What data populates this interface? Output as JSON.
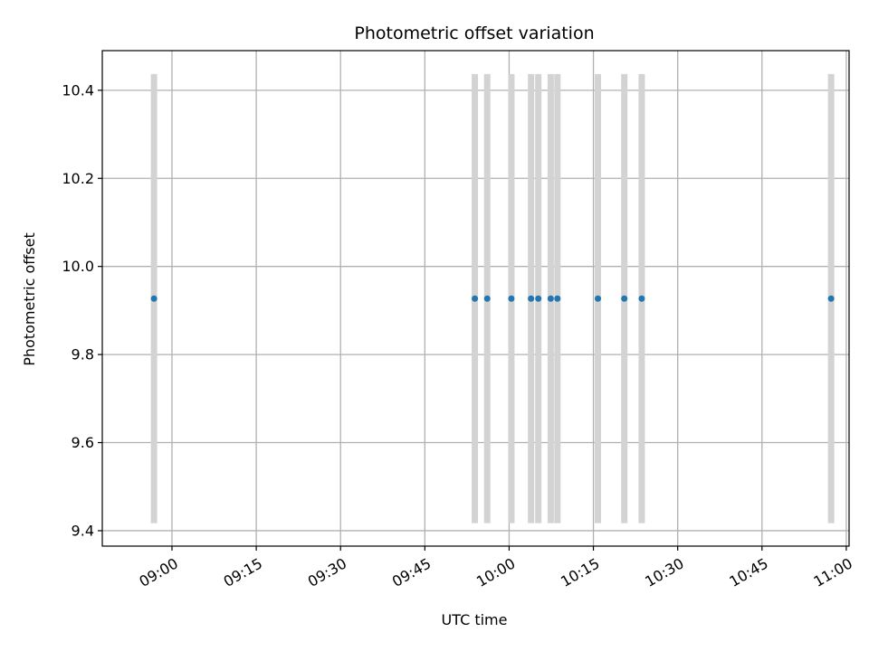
{
  "chart_data": {
    "type": "scatter",
    "title": "Photometric offset variation",
    "xlabel": "UTC time",
    "ylabel": "Photometric offset",
    "x_ticks": [
      "09:00",
      "09:15",
      "09:30",
      "09:45",
      "10:00",
      "10:15",
      "10:30",
      "10:45",
      "11:00"
    ],
    "y_ticks": [
      "9.4",
      "9.6",
      "9.8",
      "10.0",
      "10.2",
      "10.4"
    ],
    "xlim": [
      "08:47:36",
      "11:00:30"
    ],
    "ylim": [
      9.365,
      10.49
    ],
    "grid": true,
    "points": [
      {
        "x": "08:56:48",
        "y": 9.927,
        "yerr": 0.51
      },
      {
        "x": "09:53:54",
        "y": 9.927,
        "yerr": 0.51
      },
      {
        "x": "09:56:06",
        "y": 9.927,
        "yerr": 0.51
      },
      {
        "x": "10:00:24",
        "y": 9.927,
        "yerr": 0.51
      },
      {
        "x": "10:03:54",
        "y": 9.927,
        "yerr": 0.51
      },
      {
        "x": "10:05:12",
        "y": 9.927,
        "yerr": 0.51
      },
      {
        "x": "10:07:24",
        "y": 9.927,
        "yerr": 0.51
      },
      {
        "x": "10:08:36",
        "y": 9.927,
        "yerr": 0.51
      },
      {
        "x": "10:15:48",
        "y": 9.927,
        "yerr": 0.51
      },
      {
        "x": "10:20:30",
        "y": 9.927,
        "yerr": 0.51
      },
      {
        "x": "10:23:36",
        "y": 9.927,
        "yerr": 0.51
      },
      {
        "x": "10:57:18",
        "y": 9.927,
        "yerr": 0.51
      }
    ],
    "colors": {
      "marker": "#1f77b4",
      "errorbar": "#d3d3d3",
      "grid": "#b0b0b0",
      "axes": "#000000"
    }
  }
}
